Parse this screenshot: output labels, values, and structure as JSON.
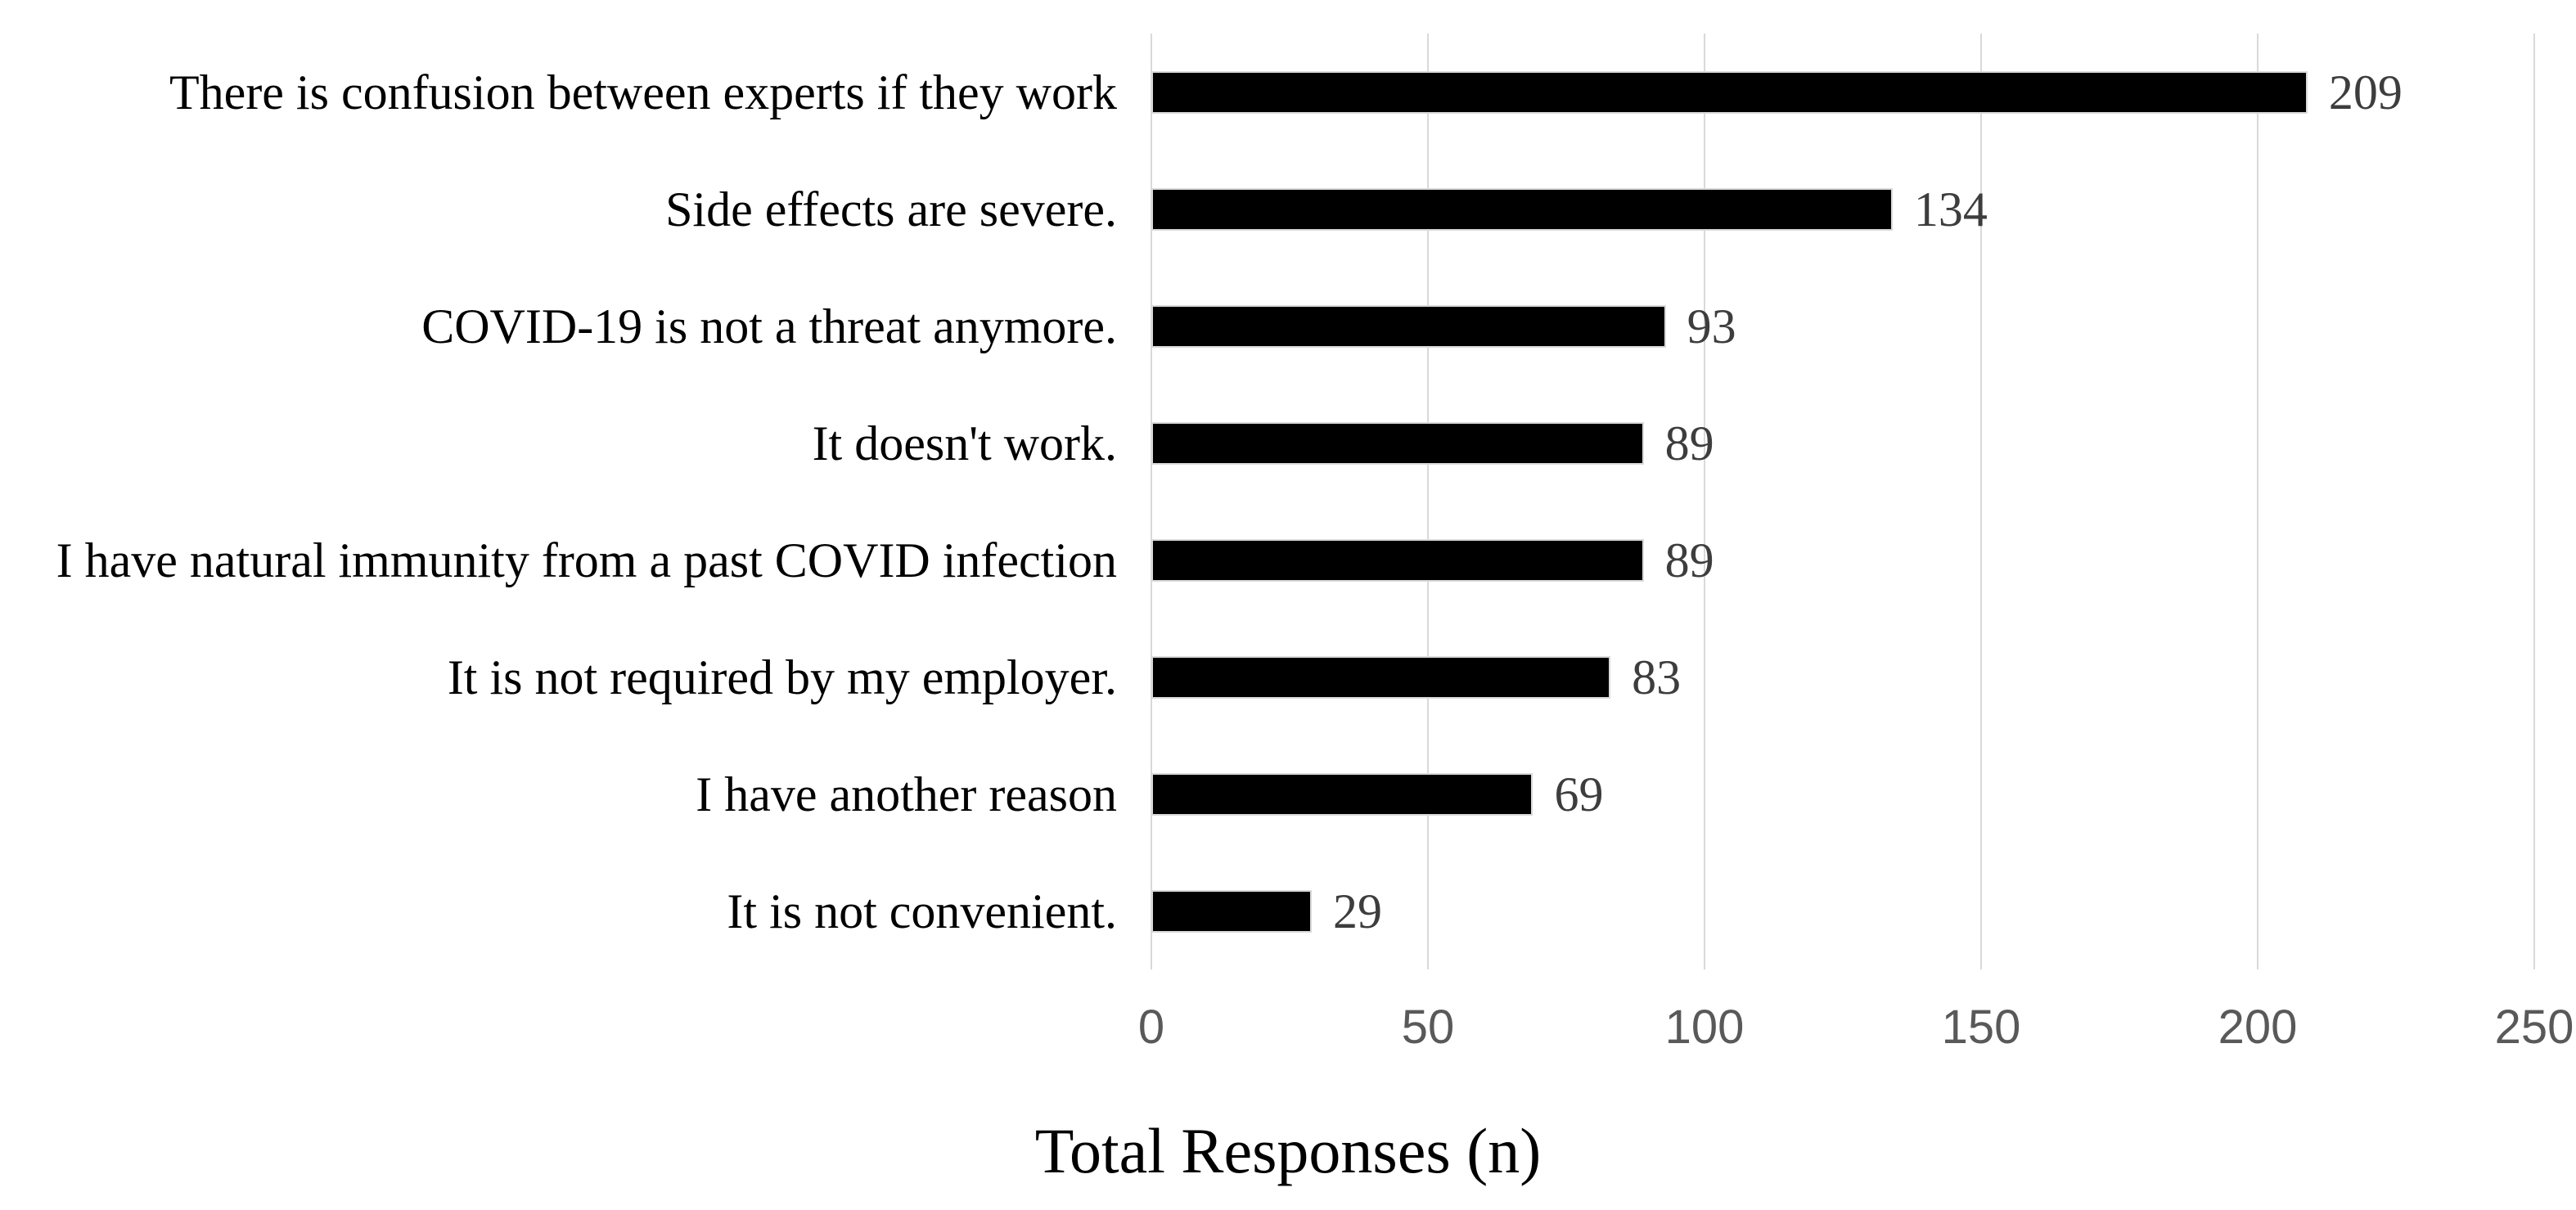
{
  "chart_data": {
    "type": "bar",
    "orientation": "horizontal",
    "title": "",
    "xlabel": "Total Responses (n)",
    "ylabel": "",
    "categories": [
      "There is confusion between experts if they work",
      "Side effects are severe.",
      "COVID-19 is not a threat anymore.",
      "It doesn't work.",
      "I have natural immunity from a past COVID infection",
      "It is not required by my employer.",
      "I have another reason",
      "It is not convenient."
    ],
    "values": [
      209,
      134,
      93,
      89,
      89,
      83,
      69,
      29
    ],
    "data_labels_shown": true,
    "xlim": [
      0,
      250
    ],
    "xticks": [
      0,
      50,
      100,
      150,
      200,
      250
    ],
    "grid": "vertical",
    "legend_position": "none",
    "colors": {
      "bar_fill": "#000000",
      "bar_outline": "#d9d9d9",
      "gridline": "#d9d9d9",
      "tick_text": "#595959",
      "value_text": "#3d3d3d",
      "category_text": "#000000",
      "background": "#ffffff"
    }
  }
}
